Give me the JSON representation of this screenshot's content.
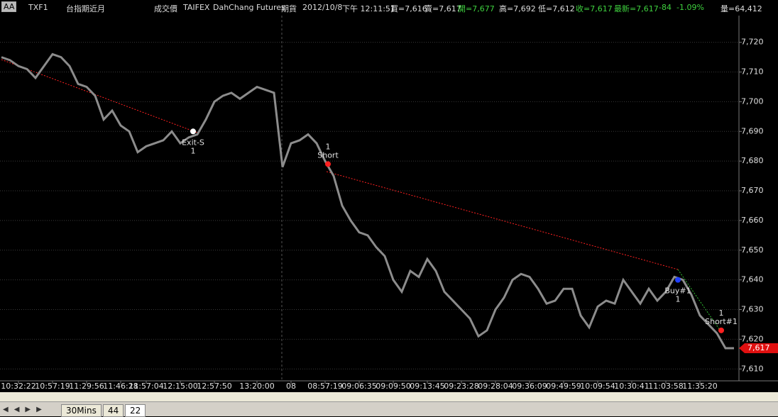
{
  "header": {
    "style_button": "AA",
    "symbol": "TXF1",
    "symbol_name": "台指期近月",
    "field": "成交價",
    "exchange": "TAIFEX",
    "broker": "DahChang Futures",
    "market": "期貨",
    "date": "2012/10/8",
    "time": "下午 12:11:51",
    "bid": "買=7,616",
    "ask": "賣=7,617",
    "open": "開=7,677",
    "high": "高=7,692",
    "low": "低=7,612",
    "close": "收=7,617",
    "last": "最新=7,617",
    "change": "-84",
    "change_pct": "-1.09%",
    "volume": "量=64,412"
  },
  "chart_data": {
    "type": "line",
    "color": "#8c8c8c",
    "grid": true,
    "categories": [
      null,
      null,
      "10:32:22",
      null,
      null,
      null,
      "10:57:19",
      null,
      null,
      null,
      "11:29:56",
      null,
      null,
      null,
      "11:46:28",
      null,
      null,
      "11:57:04",
      null,
      null,
      null,
      "12:15:00",
      null,
      null,
      null,
      "12:57:50",
      null,
      null,
      null,
      null,
      "13:20:00",
      null,
      null,
      null,
      "08",
      null,
      null,
      null,
      "08:57:19",
      null,
      null,
      null,
      "09:06:35",
      null,
      null,
      null,
      "09:09:50",
      null,
      null,
      null,
      "09:13:45",
      null,
      null,
      null,
      "09:23:28",
      null,
      null,
      null,
      "09:28:04",
      null,
      null,
      null,
      "09:36:09",
      null,
      null,
      null,
      "09:49:59",
      null,
      null,
      null,
      "10:09:54",
      null,
      null,
      null,
      "10:30:41",
      null,
      null,
      null,
      "11:03:58",
      null,
      null,
      null,
      "11:35:20",
      null,
      null,
      null,
      null
    ],
    "values": [
      7715,
      7714,
      7712,
      7711,
      7708,
      7712,
      7716,
      7715,
      7712,
      7706,
      7705,
      7702,
      7694,
      7697,
      7692,
      7690,
      7683,
      7685,
      7686,
      7687,
      7690,
      7686,
      7688,
      7689,
      7694,
      7700,
      7702,
      7703,
      7701,
      7703,
      7705,
      7704,
      7703,
      7678,
      7686,
      7687,
      7689,
      7686,
      7680,
      7675,
      7665,
      7660,
      7656,
      7655,
      7651,
      7648,
      7640,
      7636,
      7643,
      7641,
      7647,
      7643,
      7636,
      7633,
      7630,
      7627,
      7621,
      7623,
      7630,
      7634,
      7640,
      7642,
      7641,
      7637,
      7632,
      7633,
      7637,
      7637,
      7628,
      7624,
      7631,
      7633,
      7632,
      7640,
      7636,
      7632,
      7637,
      7633,
      7636,
      7641,
      7640,
      7635,
      7628,
      7625,
      7622,
      7617,
      7617
    ],
    "ylim": [
      7606,
      7729
    ],
    "yticks": [
      {
        "value": 7610,
        "label": "7,610"
      },
      {
        "value": 7620,
        "label": "7,620"
      },
      {
        "value": 7630,
        "label": "7,630"
      },
      {
        "value": 7640,
        "label": "7,640"
      },
      {
        "value": 7650,
        "label": "7,650"
      },
      {
        "value": 7660,
        "label": "7,660"
      },
      {
        "value": 7670,
        "label": "7,670"
      },
      {
        "value": 7680,
        "label": "7,680"
      },
      {
        "value": 7690,
        "label": "7,690"
      },
      {
        "value": 7700,
        "label": "7,700"
      },
      {
        "value": 7710,
        "label": "7,710"
      },
      {
        "value": 7720,
        "label": "7,720"
      }
    ],
    "last_price": {
      "value": 7617,
      "label": "7,617"
    },
    "annotations": [
      {
        "label": "Exit-S",
        "qty": "1",
        "value": 7690,
        "color": "#ffffff"
      },
      {
        "label": "Short",
        "qty": "1",
        "value": 7679,
        "color": "#ff2020"
      },
      {
        "label": "Buy#1",
        "qty": "1",
        "value": 7640,
        "color": "#2040ff"
      },
      {
        "label": "Short#1",
        "qty": "1",
        "value": 7623,
        "color": "#ff2020"
      }
    ]
  },
  "tabs": [
    "30Mins",
    "44",
    "22"
  ]
}
